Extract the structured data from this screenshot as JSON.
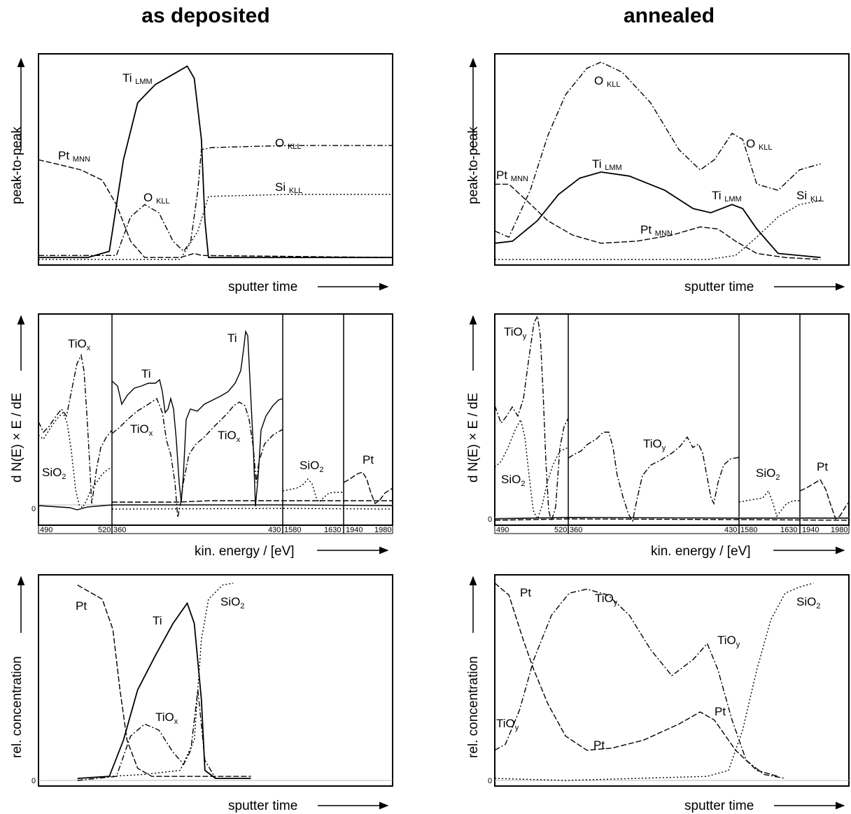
{
  "columns": {
    "left_title": "as deposited",
    "right_title": "annealed"
  },
  "axis_labels": {
    "peak": "peak-to-peak",
    "dnde": "d N(E) × E / dE",
    "conc": "rel. concentration",
    "sputter": "sputter time",
    "kin": "kin. energy / [eV]",
    "zero": "0"
  },
  "chart_data": [
    {
      "id": "dep-aes",
      "type": "line",
      "column": "as deposited",
      "xlabel": "sputter time",
      "ylabel": "peak-to-peak",
      "series": [
        {
          "name": "Ti LMM",
          "style": "solid",
          "points": [
            [
              0,
              0.02
            ],
            [
              0.14,
              0.02
            ],
            [
              0.2,
              0.05
            ],
            [
              0.24,
              0.5
            ],
            [
              0.28,
              0.78
            ],
            [
              0.33,
              0.87
            ],
            [
              0.38,
              0.92
            ],
            [
              0.42,
              0.96
            ],
            [
              0.44,
              0.9
            ],
            [
              0.46,
              0.6
            ],
            [
              0.47,
              0.2
            ],
            [
              0.48,
              0.02
            ],
            [
              1,
              0.02
            ]
          ]
        },
        {
          "name": "O KLL",
          "style": "dashdot",
          "points": [
            [
              0,
              0.03
            ],
            [
              0.22,
              0.03
            ],
            [
              0.26,
              0.22
            ],
            [
              0.3,
              0.28
            ],
            [
              0.34,
              0.24
            ],
            [
              0.38,
              0.1
            ],
            [
              0.41,
              0.05
            ],
            [
              0.43,
              0.1
            ],
            [
              0.45,
              0.35
            ],
            [
              0.46,
              0.55
            ],
            [
              0.49,
              0.56
            ],
            [
              0.7,
              0.57
            ],
            [
              1,
              0.57
            ]
          ]
        },
        {
          "name": "Pt MNN",
          "style": "dashed",
          "points": [
            [
              0,
              0.5
            ],
            [
              0.05,
              0.48
            ],
            [
              0.12,
              0.45
            ],
            [
              0.18,
              0.4
            ],
            [
              0.22,
              0.28
            ],
            [
              0.26,
              0.1
            ],
            [
              0.3,
              0.02
            ],
            [
              0.4,
              0.02
            ],
            [
              0.44,
              0.04
            ],
            [
              0.46,
              0.03
            ],
            [
              1,
              0.02
            ]
          ]
        },
        {
          "name": "Si KLL",
          "style": "dotted",
          "points": [
            [
              0,
              0.01
            ],
            [
              0.4,
              0.01
            ],
            [
              0.45,
              0.15
            ],
            [
              0.48,
              0.32
            ],
            [
              0.7,
              0.33
            ],
            [
              1,
              0.33
            ]
          ]
        }
      ]
    },
    {
      "id": "dep-spec",
      "type": "line",
      "column": "as deposited",
      "xlabel": "kin. energy / [eV]",
      "ylabel": "d N(E) × E / dE",
      "segments": [
        {
          "tick_left": "490",
          "tick_right": "520"
        },
        {
          "tick_left": "360",
          "tick_right": "430"
        },
        {
          "tick_left": "1580",
          "tick_right": "1630"
        },
        {
          "tick_left": "1940",
          "tick_right": "1980"
        }
      ],
      "series": [
        {
          "name": "Ti",
          "style": "solid",
          "segment": 2
        },
        {
          "name": "TiOx",
          "style": "dashdot",
          "segment": 1
        },
        {
          "name": "SiO2",
          "style": "dotted",
          "segment": 1
        },
        {
          "name": "Pt",
          "style": "dashed",
          "segment": 4
        }
      ]
    },
    {
      "id": "dep-conc",
      "type": "line",
      "column": "as deposited",
      "xlabel": "sputter time",
      "ylabel": "rel. concentration",
      "series": [
        {
          "name": "Pt",
          "style": "dashed",
          "points": [
            [
              0.11,
              0.97
            ],
            [
              0.18,
              0.9
            ],
            [
              0.21,
              0.75
            ],
            [
              0.23,
              0.45
            ],
            [
              0.25,
              0.2
            ],
            [
              0.28,
              0.06
            ],
            [
              0.32,
              0.02
            ],
            [
              0.6,
              0.02
            ]
          ]
        },
        {
          "name": "Ti",
          "style": "solid",
          "points": [
            [
              0.11,
              0.01
            ],
            [
              0.2,
              0.02
            ],
            [
              0.24,
              0.2
            ],
            [
              0.28,
              0.45
            ],
            [
              0.33,
              0.62
            ],
            [
              0.38,
              0.78
            ],
            [
              0.42,
              0.88
            ],
            [
              0.44,
              0.78
            ],
            [
              0.46,
              0.4
            ],
            [
              0.47,
              0.05
            ],
            [
              0.5,
              0.01
            ],
            [
              0.6,
              0.01
            ]
          ]
        },
        {
          "name": "TiOx",
          "style": "dashdot",
          "points": [
            [
              0.11,
              0.0
            ],
            [
              0.22,
              0.02
            ],
            [
              0.26,
              0.22
            ],
            [
              0.3,
              0.28
            ],
            [
              0.34,
              0.25
            ],
            [
              0.38,
              0.14
            ],
            [
              0.41,
              0.08
            ],
            [
              0.43,
              0.15
            ],
            [
              0.45,
              0.45
            ],
            [
              0.47,
              0.1
            ],
            [
              0.5,
              0.01
            ]
          ]
        },
        {
          "name": "SiO2",
          "style": "dotted",
          "points": [
            [
              0.2,
              0.02
            ],
            [
              0.3,
              0.03
            ],
            [
              0.4,
              0.05
            ],
            [
              0.44,
              0.2
            ],
            [
              0.46,
              0.7
            ],
            [
              0.48,
              0.9
            ],
            [
              0.52,
              0.97
            ],
            [
              0.55,
              0.98
            ]
          ]
        }
      ]
    },
    {
      "id": "ann-aes",
      "type": "line",
      "column": "annealed",
      "xlabel": "sputter time",
      "ylabel": "peak-to-peak",
      "series": [
        {
          "name": "O KLL",
          "style": "dashdot",
          "points": [
            [
              0,
              0.15
            ],
            [
              0.04,
              0.12
            ],
            [
              0.1,
              0.35
            ],
            [
              0.15,
              0.62
            ],
            [
              0.2,
              0.82
            ],
            [
              0.26,
              0.95
            ],
            [
              0.3,
              0.98
            ],
            [
              0.36,
              0.93
            ],
            [
              0.44,
              0.78
            ],
            [
              0.52,
              0.55
            ],
            [
              0.58,
              0.45
            ],
            [
              0.62,
              0.5
            ],
            [
              0.67,
              0.63
            ],
            [
              0.7,
              0.6
            ],
            [
              0.74,
              0.38
            ],
            [
              0.8,
              0.35
            ],
            [
              0.86,
              0.45
            ],
            [
              0.92,
              0.48
            ]
          ]
        },
        {
          "name": "Ti LMM",
          "style": "solid",
          "points": [
            [
              0,
              0.09
            ],
            [
              0.05,
              0.1
            ],
            [
              0.12,
              0.2
            ],
            [
              0.18,
              0.33
            ],
            [
              0.24,
              0.41
            ],
            [
              0.3,
              0.44
            ],
            [
              0.38,
              0.42
            ],
            [
              0.48,
              0.35
            ],
            [
              0.56,
              0.26
            ],
            [
              0.61,
              0.24
            ],
            [
              0.67,
              0.28
            ],
            [
              0.7,
              0.26
            ],
            [
              0.74,
              0.16
            ],
            [
              0.8,
              0.04
            ],
            [
              0.92,
              0.02
            ]
          ]
        },
        {
          "name": "Pt MNN",
          "style": "dashed",
          "points": [
            [
              0,
              0.38
            ],
            [
              0.04,
              0.38
            ],
            [
              0.09,
              0.3
            ],
            [
              0.15,
              0.2
            ],
            [
              0.22,
              0.13
            ],
            [
              0.3,
              0.09
            ],
            [
              0.4,
              0.1
            ],
            [
              0.5,
              0.13
            ],
            [
              0.58,
              0.17
            ],
            [
              0.63,
              0.16
            ],
            [
              0.68,
              0.1
            ],
            [
              0.74,
              0.04
            ],
            [
              0.82,
              0.02
            ],
            [
              0.92,
              0.01
            ]
          ]
        },
        {
          "name": "Si KLL",
          "style": "dotted",
          "points": [
            [
              0,
              0.01
            ],
            [
              0.6,
              0.01
            ],
            [
              0.68,
              0.03
            ],
            [
              0.74,
              0.12
            ],
            [
              0.8,
              0.22
            ],
            [
              0.86,
              0.28
            ],
            [
              0.92,
              0.3
            ]
          ]
        }
      ]
    },
    {
      "id": "ann-spec",
      "type": "line",
      "column": "annealed",
      "xlabel": "kin. energy / [eV]",
      "ylabel": "d N(E) × E / dE",
      "segments": [
        {
          "tick_left": "490",
          "tick_right": "520"
        },
        {
          "tick_left": "360",
          "tick_right": "430"
        },
        {
          "tick_left": "1580",
          "tick_right": "1630"
        },
        {
          "tick_left": "1940",
          "tick_right": "1980"
        }
      ],
      "series": [
        {
          "name": "TiOy",
          "style": "dashdot",
          "segment": 1
        },
        {
          "name": "SiO2",
          "style": "dotted",
          "segment": 1
        },
        {
          "name": "Pt",
          "style": "dashed",
          "segment": 4
        }
      ]
    },
    {
      "id": "ann-conc",
      "type": "line",
      "column": "annealed",
      "xlabel": "sputter time",
      "ylabel": "rel. concentration",
      "series": [
        {
          "name": "Pt",
          "style": "dashed",
          "points": [
            [
              0,
              0.98
            ],
            [
              0.04,
              0.92
            ],
            [
              0.08,
              0.7
            ],
            [
              0.11,
              0.55
            ],
            [
              0.15,
              0.38
            ],
            [
              0.2,
              0.22
            ],
            [
              0.26,
              0.15
            ],
            [
              0.33,
              0.16
            ],
            [
              0.42,
              0.2
            ],
            [
              0.52,
              0.28
            ],
            [
              0.58,
              0.34
            ],
            [
              0.62,
              0.3
            ],
            [
              0.68,
              0.15
            ],
            [
              0.74,
              0.05
            ],
            [
              0.8,
              0.02
            ]
          ]
        },
        {
          "name": "TiOy",
          "style": "dashdot",
          "points": [
            [
              0,
              0.15
            ],
            [
              0.03,
              0.18
            ],
            [
              0.07,
              0.35
            ],
            [
              0.11,
              0.6
            ],
            [
              0.16,
              0.82
            ],
            [
              0.21,
              0.93
            ],
            [
              0.26,
              0.95
            ],
            [
              0.32,
              0.92
            ],
            [
              0.38,
              0.82
            ],
            [
              0.44,
              0.65
            ],
            [
              0.5,
              0.52
            ],
            [
              0.56,
              0.6
            ],
            [
              0.6,
              0.68
            ],
            [
              0.63,
              0.55
            ],
            [
              0.67,
              0.3
            ],
            [
              0.71,
              0.1
            ],
            [
              0.76,
              0.03
            ],
            [
              0.82,
              0.01
            ]
          ]
        },
        {
          "name": "SiO2",
          "style": "dotted",
          "points": [
            [
              0,
              0.01
            ],
            [
              0.2,
              0.0
            ],
            [
              0.4,
              0.01
            ],
            [
              0.6,
              0.02
            ],
            [
              0.66,
              0.05
            ],
            [
              0.7,
              0.25
            ],
            [
              0.74,
              0.55
            ],
            [
              0.78,
              0.8
            ],
            [
              0.82,
              0.93
            ],
            [
              0.86,
              0.96
            ],
            [
              0.9,
              0.98
            ]
          ]
        }
      ]
    }
  ]
}
